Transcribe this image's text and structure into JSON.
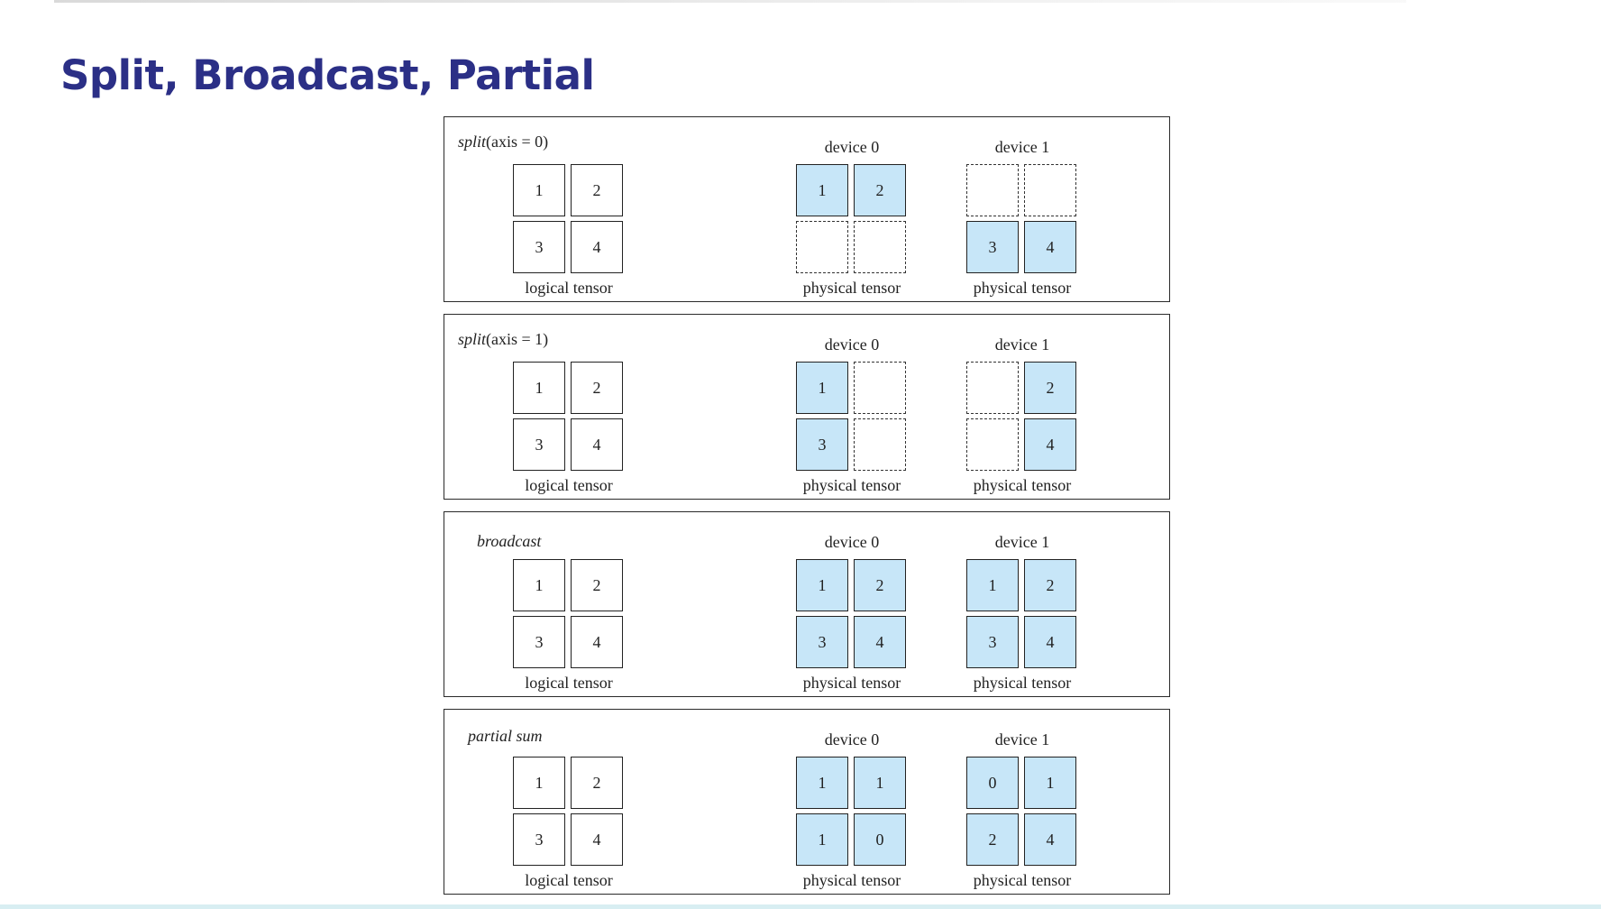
{
  "title": "Split, Broadcast, Partial",
  "panels": [
    {
      "label_name": "split",
      "label_args": "(axis = 0)",
      "logical": {
        "values": [
          "1",
          "2",
          "3",
          "4"
        ],
        "caption": "logical tensor"
      },
      "devices": [
        {
          "name": "device 0",
          "caption": "physical tensor",
          "values": [
            "1",
            "2",
            "",
            ""
          ],
          "states": [
            "filled",
            "filled",
            "empty",
            "empty"
          ]
        },
        {
          "name": "device 1",
          "caption": "physical tensor",
          "values": [
            "",
            "",
            "3",
            "4"
          ],
          "states": [
            "empty",
            "empty",
            "filled",
            "filled"
          ]
        }
      ]
    },
    {
      "label_name": "split",
      "label_args": "(axis = 1)",
      "logical": {
        "values": [
          "1",
          "2",
          "3",
          "4"
        ],
        "caption": "logical tensor"
      },
      "devices": [
        {
          "name": "device 0",
          "caption": "physical tensor",
          "values": [
            "1",
            "",
            "3",
            ""
          ],
          "states": [
            "filled",
            "empty",
            "filled",
            "empty"
          ]
        },
        {
          "name": "device 1",
          "caption": "physical tensor",
          "values": [
            "",
            "2",
            "",
            "4"
          ],
          "states": [
            "empty",
            "filled",
            "empty",
            "filled"
          ]
        }
      ]
    },
    {
      "label_name": "broadcast",
      "label_args": "",
      "logical": {
        "values": [
          "1",
          "2",
          "3",
          "4"
        ],
        "caption": "logical tensor"
      },
      "devices": [
        {
          "name": "device 0",
          "caption": "physical tensor",
          "values": [
            "1",
            "2",
            "3",
            "4"
          ],
          "states": [
            "filled",
            "filled",
            "filled",
            "filled"
          ]
        },
        {
          "name": "device 1",
          "caption": "physical tensor",
          "values": [
            "1",
            "2",
            "3",
            "4"
          ],
          "states": [
            "filled",
            "filled",
            "filled",
            "filled"
          ]
        }
      ]
    },
    {
      "label_name": "partial sum",
      "label_args": "",
      "logical": {
        "values": [
          "1",
          "2",
          "3",
          "4"
        ],
        "caption": "logical tensor"
      },
      "devices": [
        {
          "name": "device 0",
          "caption": "physical tensor",
          "values": [
            "1",
            "1",
            "1",
            "0"
          ],
          "states": [
            "filled",
            "filled",
            "filled",
            "filled"
          ]
        },
        {
          "name": "device 1",
          "caption": "physical tensor",
          "values": [
            "0",
            "1",
            "2",
            "4"
          ],
          "states": [
            "filled",
            "filled",
            "filled",
            "filled"
          ]
        }
      ]
    }
  ],
  "colors": {
    "title": "#2b2f86",
    "filled_cell": "#c7e6f8",
    "border": "#222222"
  }
}
